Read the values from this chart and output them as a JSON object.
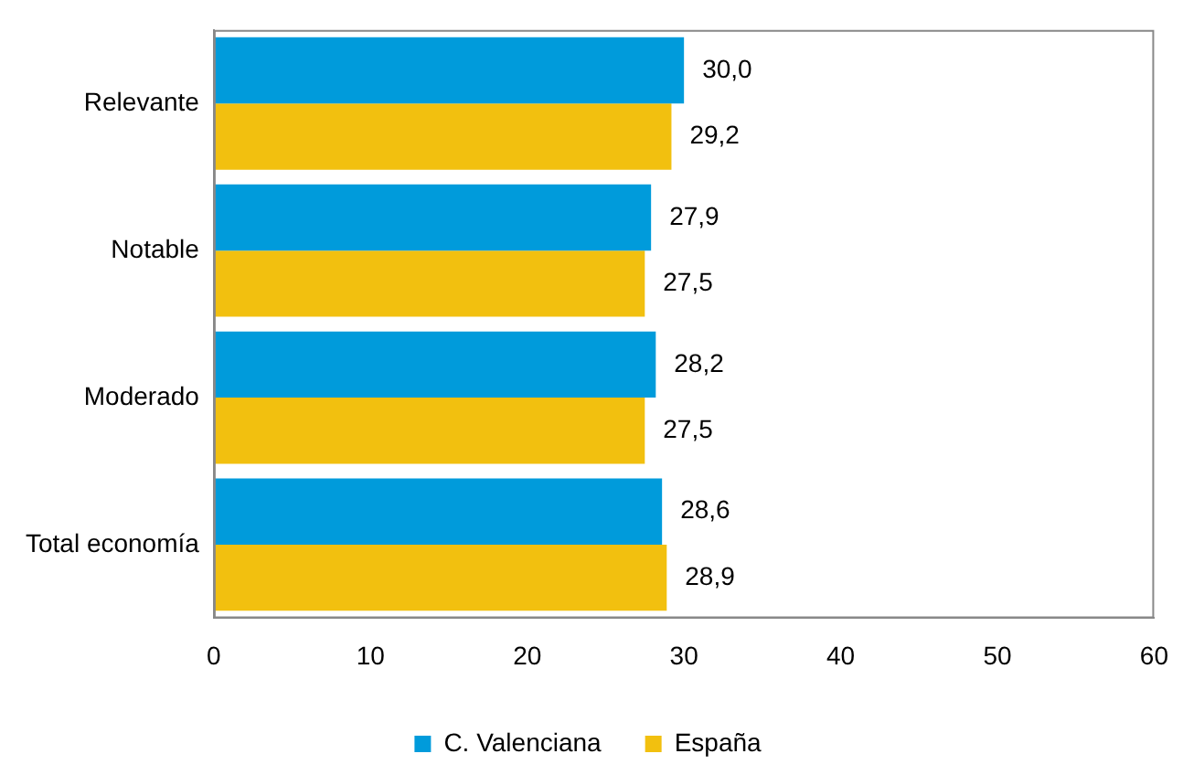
{
  "chart_data": {
    "type": "bar",
    "orientation": "horizontal",
    "categories": [
      "Relevante",
      "Notable",
      "Moderado",
      "Total economía"
    ],
    "series": [
      {
        "name": "C. Valenciana",
        "color": "#009bdb",
        "values": [
          30.0,
          27.9,
          28.2,
          28.6
        ],
        "value_labels": [
          "30,0",
          "27,9",
          "28,2",
          "28,6"
        ]
      },
      {
        "name": "España",
        "color": "#f2c00f",
        "values": [
          29.2,
          27.5,
          27.5,
          28.9
        ],
        "value_labels": [
          "29,2",
          "27,5",
          "27,5",
          "28,9"
        ]
      }
    ],
    "xlim": [
      0,
      60
    ],
    "xticks": [
      0,
      10,
      20,
      30,
      40,
      50,
      60
    ],
    "grid": false,
    "legend": "bottom"
  }
}
